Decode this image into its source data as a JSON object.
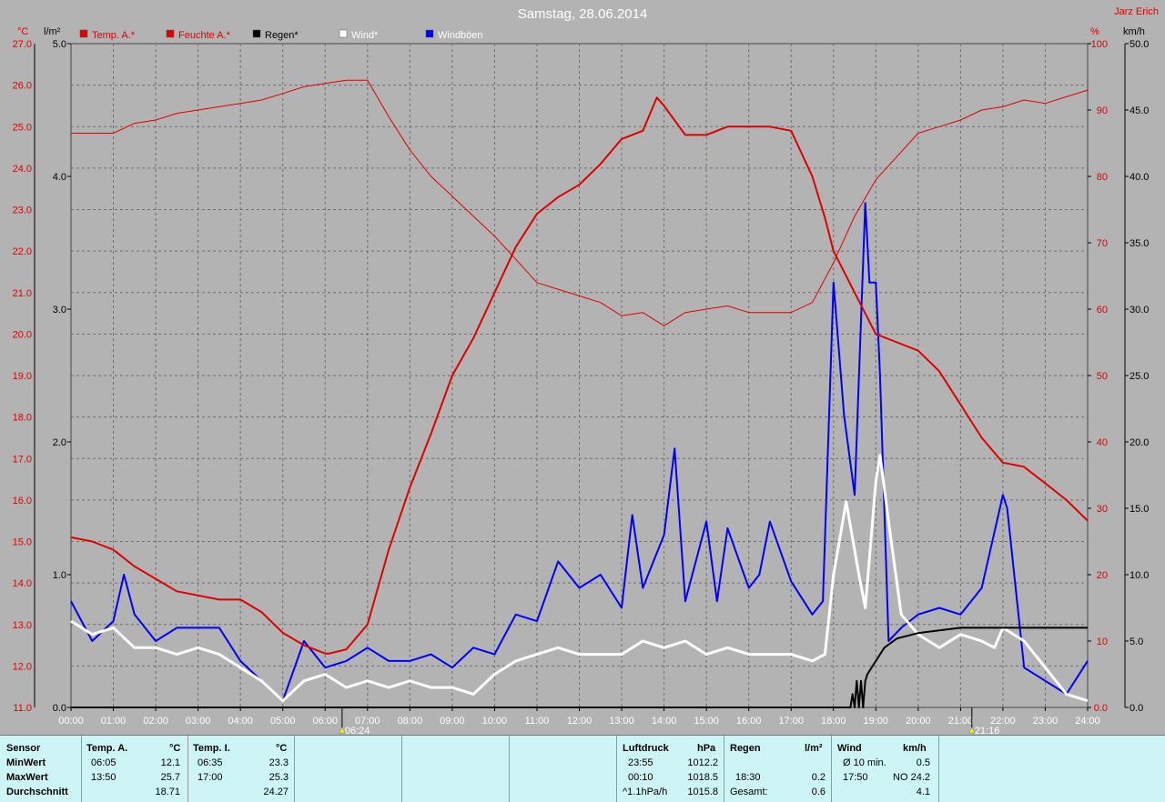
{
  "title": "Samstag, 28.06.2014",
  "author": "Jarz Erich",
  "axes": {
    "temp_unit": "°C",
    "rain_unit": "l/m²",
    "hum_unit": "%",
    "wind_unit": "km/h",
    "temp_ticks": [
      "11.0",
      "12.0",
      "13.0",
      "14.0",
      "15.0",
      "16.0",
      "17.0",
      "18.0",
      "19.0",
      "20.0",
      "21.0",
      "22.0",
      "23.0",
      "24.0",
      "25.0",
      "26.0",
      "27.0"
    ],
    "rain_ticks": [
      "0.0",
      "1.0",
      "2.0",
      "3.0",
      "4.0",
      "5.0"
    ],
    "hum_ticks": [
      "0.0",
      "10",
      "20",
      "30",
      "40",
      "50",
      "60",
      "70",
      "80",
      "90",
      "100"
    ],
    "wind_ticks": [
      "0.0",
      "5.0",
      "10.0",
      "15.0",
      "20.0",
      "25.0",
      "30.0",
      "35.0",
      "40.0",
      "45.0",
      "50.0"
    ],
    "time_ticks": [
      "00:00",
      "01:00",
      "02:00",
      "03:00",
      "04:00",
      "05:00",
      "06:00",
      "07:00",
      "08:00",
      "09:00",
      "10:00",
      "11:00",
      "12:00",
      "13:00",
      "14:00",
      "15:00",
      "16:00",
      "17:00",
      "18:00",
      "19:00",
      "20:00",
      "21:00",
      "22:00",
      "23:00",
      "24:00"
    ]
  },
  "legend": [
    {
      "label": "Temp. A.*",
      "color": "#e00000",
      "text_color": "#e00000"
    },
    {
      "label": "Feuchte A.*",
      "color": "#e00000",
      "text_color": "#e00000"
    },
    {
      "label": "Regen*",
      "color": "#000000",
      "text_color": "#000000"
    },
    {
      "label": "Wind*",
      "color": "#ffffff",
      "text_color": "#ffffff"
    },
    {
      "label": "Windböen",
      "color": "#0000ff",
      "text_color": "#ffffff"
    }
  ],
  "markers": {
    "sunrise": "06:24",
    "sunset": "21:16"
  },
  "chart_data": {
    "type": "line",
    "x_range": [
      "00:00",
      "24:00"
    ],
    "series": [
      {
        "name": "Temp. A.",
        "unit": "°C",
        "axis": "temp",
        "ylim": [
          11,
          27
        ],
        "color": "#e00000",
        "x": [
          0,
          0.5,
          1,
          1.5,
          2,
          2.5,
          3,
          3.5,
          4,
          4.5,
          5,
          5.5,
          6,
          6.1,
          6.5,
          7,
          7.5,
          8,
          8.5,
          9,
          9.5,
          10,
          10.5,
          11,
          11.5,
          12,
          12.5,
          13,
          13.5,
          13.83,
          14,
          14.5,
          15,
          15.5,
          16,
          16.5,
          17,
          17.5,
          17.8,
          18,
          18.5,
          19,
          19.5,
          20,
          20.5,
          21,
          21.5,
          22,
          22.5,
          23,
          23.5,
          24
        ],
        "y": [
          15.1,
          15.0,
          14.8,
          14.4,
          14.1,
          13.8,
          13.7,
          13.6,
          13.6,
          13.3,
          12.8,
          12.5,
          12.3,
          12.3,
          12.4,
          13.0,
          14.8,
          16.3,
          17.6,
          19.0,
          19.9,
          21.0,
          22.1,
          22.9,
          23.3,
          23.6,
          24.1,
          24.7,
          24.9,
          25.7,
          25.5,
          24.8,
          24.8,
          25.0,
          25.0,
          25.0,
          24.9,
          23.8,
          22.8,
          22.0,
          21.0,
          20.0,
          19.8,
          19.6,
          19.1,
          18.3,
          17.5,
          16.9,
          16.8,
          16.4,
          16.0,
          15.5
        ]
      },
      {
        "name": "Feuchte A.",
        "unit": "%",
        "axis": "hum",
        "ylim": [
          0,
          100
        ],
        "color": "#e00000",
        "x": [
          0,
          0.5,
          1,
          1.5,
          2,
          2.5,
          3,
          3.5,
          4,
          4.5,
          5,
          5.5,
          6,
          6.5,
          7,
          7.5,
          8,
          8.5,
          9,
          9.5,
          10,
          10.5,
          11,
          11.5,
          12,
          12.5,
          13,
          13.5,
          14,
          14.5,
          15,
          15.5,
          16,
          16.5,
          17,
          17.5,
          18,
          18.5,
          19,
          19.5,
          20,
          20.5,
          21,
          21.5,
          22,
          22.5,
          23,
          23.5,
          24
        ],
        "y": [
          86.5,
          86.5,
          86.5,
          88,
          88.5,
          89.5,
          90,
          90.5,
          91,
          91.5,
          92.5,
          93.5,
          94,
          94.5,
          94.5,
          89,
          84,
          80,
          77,
          74,
          71,
          67.5,
          64,
          63,
          62,
          61,
          59,
          59.5,
          57.5,
          59.5,
          60,
          60.5,
          59.5,
          59.5,
          59.5,
          61,
          67,
          74,
          79.5,
          83,
          86.5,
          87.5,
          88.5,
          90,
          90.5,
          91.5,
          91,
          92,
          93
        ]
      },
      {
        "name": "Regen",
        "unit": "l/m²",
        "axis": "rain",
        "ylim": [
          0,
          5
        ],
        "color": "#000000",
        "x": [
          0,
          18.4,
          18.45,
          18.5,
          18.55,
          18.6,
          18.65,
          18.7,
          18.75,
          18.8,
          19.0,
          19.2,
          19.5,
          20.0,
          21.0,
          24.0
        ],
        "y": [
          0,
          0,
          0.1,
          0,
          0.2,
          0,
          0.2,
          0,
          0.2,
          0.25,
          0.35,
          0.45,
          0.52,
          0.56,
          0.6,
          0.6
        ]
      },
      {
        "name": "Wind",
        "unit": "km/h",
        "axis": "wind",
        "ylim": [
          0,
          50
        ],
        "color": "#ffffff",
        "x": [
          0,
          0.5,
          1,
          1.5,
          2,
          2.5,
          3,
          3.5,
          4,
          4.5,
          5,
          5.5,
          6,
          6.5,
          7,
          7.5,
          8,
          8.5,
          9,
          9.5,
          10,
          10.5,
          11,
          11.5,
          12,
          12.5,
          13,
          13.5,
          14,
          14.5,
          15,
          15.5,
          16,
          16.5,
          17,
          17.5,
          17.8,
          18,
          18.3,
          18.6,
          18.75,
          19,
          19.1,
          19.3,
          19.6,
          20,
          20.5,
          21,
          21.5,
          21.8,
          22,
          22.5,
          23,
          23.5,
          24
        ],
        "y": [
          6.5,
          5.5,
          6,
          4.5,
          4.5,
          4,
          4.5,
          4,
          3,
          2,
          0.5,
          2,
          2.5,
          1.5,
          2,
          1.5,
          2,
          1.5,
          1.5,
          1,
          2.5,
          3.5,
          4,
          4.5,
          4,
          4,
          4,
          5,
          4.5,
          5,
          4,
          4.5,
          4,
          4,
          4,
          3.5,
          4,
          10,
          15.5,
          10,
          7.5,
          17,
          19,
          14,
          7,
          5.5,
          4.5,
          5.5,
          5,
          4.5,
          6,
          5,
          3,
          1,
          0.5
        ]
      },
      {
        "name": "Windböen",
        "unit": "km/h",
        "axis": "wind",
        "ylim": [
          0,
          50
        ],
        "color": "#0000ff",
        "x": [
          0,
          0.5,
          1,
          1.25,
          1.5,
          2,
          2.5,
          3,
          3.5,
          4,
          4.5,
          5,
          5.5,
          6,
          6.5,
          7,
          7.5,
          8,
          8.5,
          9,
          9.5,
          10,
          10.5,
          11,
          11.5,
          12,
          12.5,
          13,
          13.25,
          13.5,
          14,
          14.25,
          14.5,
          15,
          15.25,
          15.5,
          16,
          16.25,
          16.5,
          17,
          17.5,
          17.75,
          18,
          18.25,
          18.5,
          18.75,
          18.85,
          19,
          19.1,
          19.3,
          19.6,
          20,
          20.5,
          21,
          21.5,
          22,
          22.1,
          22.5,
          23,
          23.5,
          24
        ],
        "y": [
          8,
          5,
          6.5,
          10,
          7,
          5,
          6,
          6,
          6,
          3.5,
          2,
          0.5,
          5,
          3,
          3.5,
          4.5,
          3.5,
          3.5,
          4,
          3,
          4.5,
          4,
          7,
          6.5,
          11,
          9,
          10,
          7.5,
          14.5,
          9,
          13,
          19.5,
          8,
          14,
          8,
          13.5,
          9,
          10,
          14,
          9.5,
          7,
          8,
          32,
          22,
          16,
          38,
          32,
          32,
          25,
          5,
          6,
          7,
          7.5,
          7,
          9,
          16,
          15,
          3,
          2,
          1,
          3.5
        ]
      }
    ]
  },
  "stats": {
    "sensor": {
      "header": "Sensor",
      "min": "MinWert",
      "max": "MaxWert",
      "avg": "Durchschnitt"
    },
    "temp_a": {
      "header": "Temp. A.",
      "unit": "°C",
      "min_time": "06:05",
      "min_val": "12.1",
      "max_time": "13:50",
      "max_val": "25.7",
      "avg": "18.71"
    },
    "temp_i": {
      "header": "Temp. I.",
      "unit": "°C",
      "min_time": "06:35",
      "min_val": "23.3",
      "max_time": "17:00",
      "max_val": "25.3",
      "avg": "24.27"
    },
    "pressure": {
      "header": "Luftdruck",
      "unit": "hPa",
      "min_time": "23:55",
      "min_val": "1012.2",
      "max_time": "00:10",
      "max_val": "1018.5",
      "avg_label": "^1.1hPa/h",
      "avg": "1015.8"
    },
    "rain": {
      "header": "Regen",
      "unit": "l/m²",
      "max_time": "18:30",
      "max_val": "0.2",
      "total_label": "Gesamt:",
      "total": "0.6"
    },
    "wind": {
      "header": "Wind",
      "unit": "km/h",
      "min_label": "Ø 10 min.",
      "min_val": "0.5",
      "max_time": "17:50",
      "max_val": "NO 24.2",
      "avg": "4.1"
    }
  }
}
